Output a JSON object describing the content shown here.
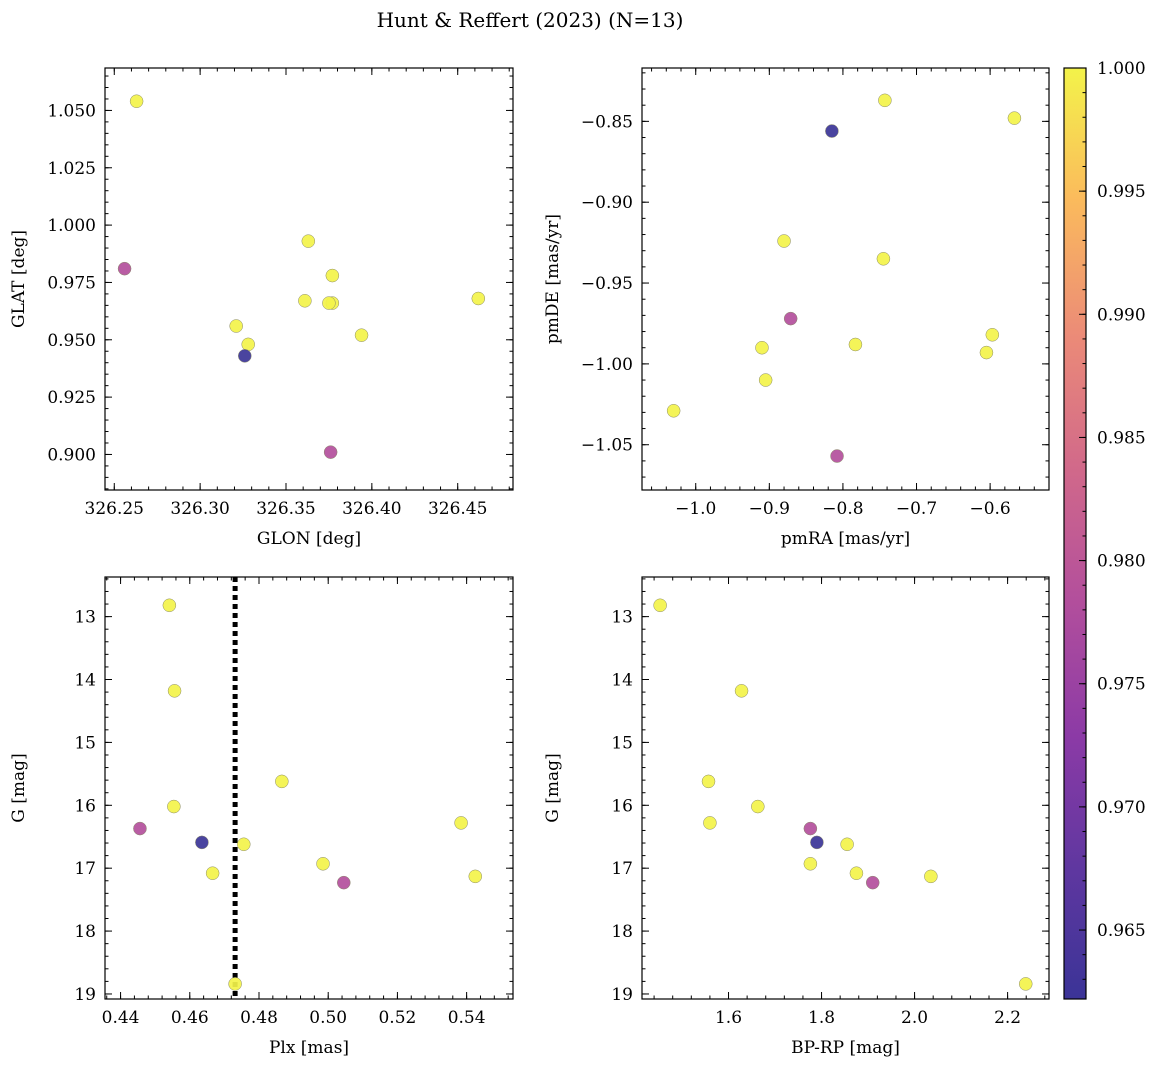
{
  "figure_title": "Hunt & Reffert (2023) (N=13)",
  "colorbar": {
    "min": 0.9622,
    "max": 1.0,
    "ticks": [
      0.965,
      0.97,
      0.975,
      0.98,
      0.985,
      0.99,
      0.995,
      1.0
    ],
    "tick_labels": [
      "0.965",
      "0.970",
      "0.975",
      "0.980",
      "0.985",
      "0.990",
      "0.995",
      "1.000"
    ],
    "colormap": "plasma"
  },
  "chart_data": [
    {
      "type": "scatter",
      "id": "glon-glat",
      "xlabel": "GLON [deg]",
      "ylabel": "GLAT [deg]",
      "xlim": [
        326.2446,
        326.4822
      ],
      "ylim": [
        0.8845,
        1.0685
      ],
      "y_inverted": false,
      "xticks": [
        326.25,
        326.3,
        326.35,
        326.4,
        326.45
      ],
      "xtick_labels": [
        "326.25",
        "326.30",
        "326.35",
        "326.40",
        "326.45"
      ],
      "yticks": [
        0.9,
        0.925,
        0.95,
        0.975,
        1.0,
        1.025,
        1.05
      ],
      "ytick_labels": [
        "0.900",
        "0.925",
        "0.950",
        "0.975",
        "1.000",
        "1.025",
        "1.050"
      ],
      "points": [
        {
          "x": 326.263,
          "y": 1.054,
          "c": 1.0
        },
        {
          "x": 326.256,
          "y": 0.981,
          "c": 0.978
        },
        {
          "x": 326.321,
          "y": 0.956,
          "c": 1.0
        },
        {
          "x": 326.328,
          "y": 0.948,
          "c": 1.0
        },
        {
          "x": 326.326,
          "y": 0.943,
          "c": 0.9622
        },
        {
          "x": 326.363,
          "y": 0.993,
          "c": 1.0
        },
        {
          "x": 326.361,
          "y": 0.967,
          "c": 1.0
        },
        {
          "x": 326.377,
          "y": 0.978,
          "c": 1.0
        },
        {
          "x": 326.377,
          "y": 0.966,
          "c": 1.0
        },
        {
          "x": 326.375,
          "y": 0.966,
          "c": 1.0
        },
        {
          "x": 326.394,
          "y": 0.952,
          "c": 1.0
        },
        {
          "x": 326.376,
          "y": 0.901,
          "c": 0.978
        },
        {
          "x": 326.462,
          "y": 0.968,
          "c": 1.0
        }
      ]
    },
    {
      "type": "scatter",
      "id": "pmra-pmde",
      "xlabel": "pmRA [mas/yr]",
      "ylabel": "pmDE [mas/yr]",
      "xlim": [
        -1.073,
        -0.52
      ],
      "ylim": [
        -1.078,
        -0.817
      ],
      "y_inverted": false,
      "xticks": [
        -1.0,
        -0.9,
        -0.8,
        -0.7,
        -0.6
      ],
      "xtick_labels": [
        "−1.0",
        "−0.9",
        "−0.8",
        "−0.7",
        "−0.6"
      ],
      "yticks": [
        -1.05,
        -1.0,
        -0.95,
        -0.9,
        -0.85
      ],
      "ytick_labels": [
        "−1.05",
        "−1.00",
        "−0.95",
        "−0.90",
        "−0.85"
      ],
      "points": [
        {
          "x": -1.03,
          "y": -1.029,
          "c": 1.0
        },
        {
          "x": -0.91,
          "y": -0.99,
          "c": 1.0
        },
        {
          "x": -0.905,
          "y": -1.01,
          "c": 1.0
        },
        {
          "x": -0.88,
          "y": -0.924,
          "c": 1.0
        },
        {
          "x": -0.871,
          "y": -0.972,
          "c": 0.978
        },
        {
          "x": -0.815,
          "y": -0.856,
          "c": 0.9622
        },
        {
          "x": -0.808,
          "y": -1.057,
          "c": 0.978
        },
        {
          "x": -0.783,
          "y": -0.988,
          "c": 1.0
        },
        {
          "x": -0.745,
          "y": -0.935,
          "c": 1.0
        },
        {
          "x": -0.743,
          "y": -0.837,
          "c": 1.0
        },
        {
          "x": -0.605,
          "y": -0.993,
          "c": 1.0
        },
        {
          "x": -0.597,
          "y": -0.982,
          "c": 1.0
        },
        {
          "x": -0.567,
          "y": -0.848,
          "c": 1.0
        }
      ]
    },
    {
      "type": "scatter",
      "id": "plx-g",
      "xlabel": "Plx [mas]",
      "ylabel": "G [mag]",
      "xlim": [
        0.4355,
        0.5534
      ],
      "ylim": [
        12.37,
        19.08
      ],
      "y_inverted": true,
      "xticks": [
        0.44,
        0.46,
        0.48,
        0.5,
        0.52,
        0.54
      ],
      "xtick_labels": [
        "0.44",
        "0.46",
        "0.48",
        "0.50",
        "0.52",
        "0.54"
      ],
      "yticks": [
        13,
        14,
        15,
        16,
        17,
        18,
        19
      ],
      "ytick_labels": [
        "13",
        "14",
        "15",
        "16",
        "17",
        "18",
        "19"
      ],
      "vline": {
        "x": 0.4731,
        "style": "dotted"
      },
      "points": [
        {
          "x": 0.4541,
          "y": 12.82,
          "c": 1.0
        },
        {
          "x": 0.4556,
          "y": 14.18,
          "c": 1.0
        },
        {
          "x": 0.4554,
          "y": 16.02,
          "c": 1.0
        },
        {
          "x": 0.4456,
          "y": 16.37,
          "c": 0.978
        },
        {
          "x": 0.4635,
          "y": 16.59,
          "c": 0.9622
        },
        {
          "x": 0.4666,
          "y": 17.08,
          "c": 1.0
        },
        {
          "x": 0.4756,
          "y": 16.62,
          "c": 1.0
        },
        {
          "x": 0.4731,
          "y": 18.84,
          "c": 1.0
        },
        {
          "x": 0.4866,
          "y": 15.62,
          "c": 1.0
        },
        {
          "x": 0.4985,
          "y": 16.93,
          "c": 1.0
        },
        {
          "x": 0.5045,
          "y": 17.23,
          "c": 0.978
        },
        {
          "x": 0.5384,
          "y": 16.28,
          "c": 1.0
        },
        {
          "x": 0.5425,
          "y": 17.13,
          "c": 1.0
        }
      ]
    },
    {
      "type": "scatter",
      "id": "bprp-g",
      "xlabel": "BP-RP [mag]",
      "ylabel": "G [mag]",
      "xlim": [
        1.414,
        2.289
      ],
      "ylim": [
        12.37,
        19.08
      ],
      "y_inverted": true,
      "xticks": [
        1.6,
        1.8,
        2.0,
        2.2
      ],
      "xtick_labels": [
        "1.6",
        "1.8",
        "2.0",
        "2.2"
      ],
      "yticks": [
        13,
        14,
        15,
        16,
        17,
        18,
        19
      ],
      "ytick_labels": [
        "13",
        "14",
        "15",
        "16",
        "17",
        "18",
        "19"
      ],
      "points": [
        {
          "x": 1.453,
          "y": 12.82,
          "c": 1.0
        },
        {
          "x": 1.628,
          "y": 14.18,
          "c": 1.0
        },
        {
          "x": 1.557,
          "y": 15.62,
          "c": 1.0
        },
        {
          "x": 1.56,
          "y": 16.28,
          "c": 1.0
        },
        {
          "x": 1.663,
          "y": 16.02,
          "c": 1.0
        },
        {
          "x": 1.776,
          "y": 16.37,
          "c": 0.978
        },
        {
          "x": 1.79,
          "y": 16.59,
          "c": 0.9622
        },
        {
          "x": 1.855,
          "y": 16.62,
          "c": 1.0
        },
        {
          "x": 1.776,
          "y": 16.93,
          "c": 1.0
        },
        {
          "x": 1.875,
          "y": 17.08,
          "c": 1.0
        },
        {
          "x": 1.91,
          "y": 17.23,
          "c": 0.978
        },
        {
          "x": 2.035,
          "y": 17.13,
          "c": 1.0
        },
        {
          "x": 2.239,
          "y": 18.84,
          "c": 1.0
        }
      ]
    }
  ]
}
